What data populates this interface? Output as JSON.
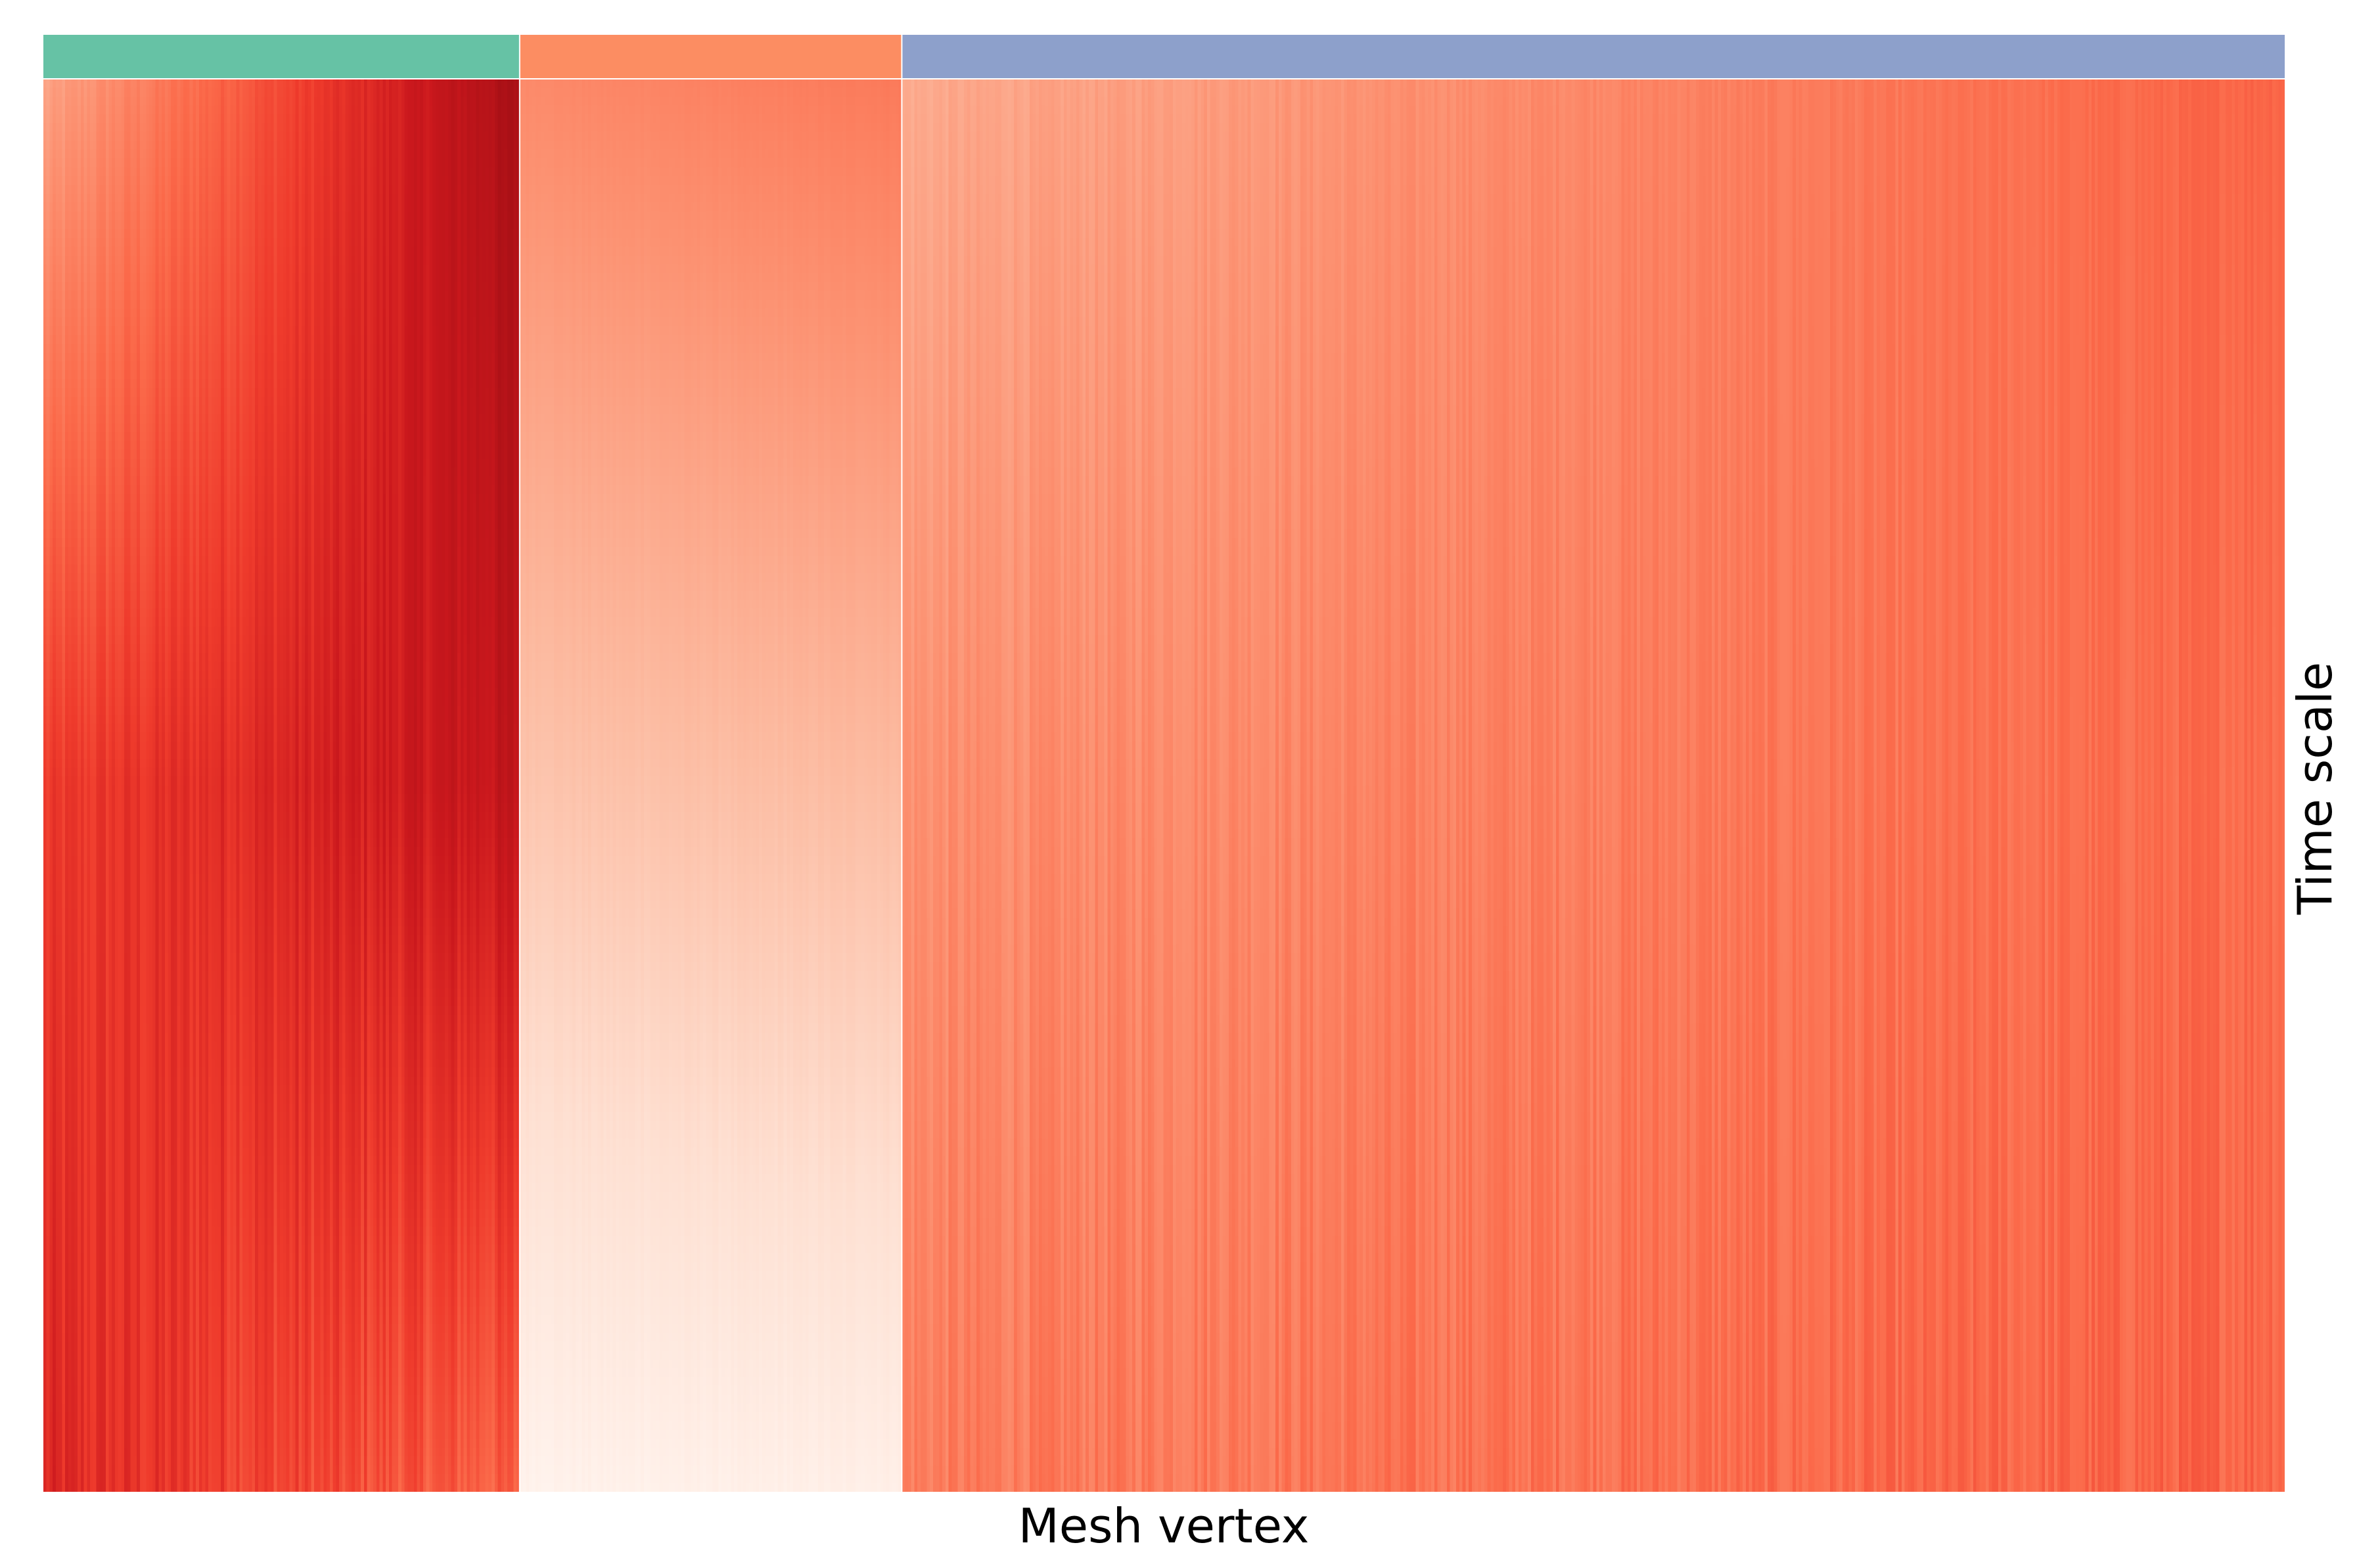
{
  "chart_data": {
    "type": "heatmap",
    "xlabel": "Mesh vertex",
    "ylabel": "Time scale",
    "colormap": "Reds",
    "grid": false,
    "legend": "none",
    "n_columns": 720,
    "n_rows": 160,
    "clusters": [
      {
        "color": "#66c2a5",
        "start_fraction": 0.0,
        "end_fraction": 0.2125,
        "intensity_top_left": 0.32,
        "intensity_top_right": 0.86,
        "intensity_mid_left": 0.62,
        "intensity_mid_right": 0.78,
        "intensity_bottom_left": 0.68,
        "intensity_bottom_right": 0.52,
        "stripe_noise": 0.06
      },
      {
        "color": "#fc8d62",
        "start_fraction": 0.2125,
        "end_fraction": 0.383,
        "intensity_top_left": 0.4,
        "intensity_top_right": 0.45,
        "intensity_mid_left": 0.22,
        "intensity_mid_right": 0.25,
        "intensity_bottom_left": 0.02,
        "intensity_bottom_right": 0.04,
        "stripe_noise": 0.01
      },
      {
        "color": "#8da0cb",
        "start_fraction": 0.383,
        "end_fraction": 1.0,
        "intensity_top_left": 0.3,
        "intensity_top_right": 0.52,
        "intensity_mid_left": 0.38,
        "intensity_mid_right": 0.5,
        "intensity_bottom_left": 0.44,
        "intensity_bottom_right": 0.52,
        "stripe_noise": 0.05
      }
    ]
  }
}
